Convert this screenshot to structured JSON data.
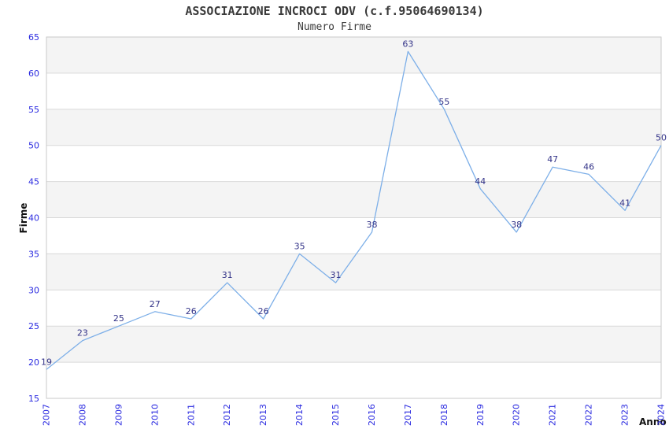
{
  "page": {
    "background": "#ffffff"
  },
  "chart_data": {
    "type": "line",
    "title": "ASSOCIAZIONE INCROCI ODV (c.f.95064690134)",
    "subtitle": "Numero Firme",
    "xlabel": "Anno",
    "ylabel": "Firme",
    "categories": [
      "2007",
      "2008",
      "2009",
      "2010",
      "2011",
      "2012",
      "2013",
      "2014",
      "2015",
      "2016",
      "2017",
      "2018",
      "2019",
      "2020",
      "2021",
      "2022",
      "2023",
      "2024"
    ],
    "values": [
      19,
      23,
      25,
      27,
      26,
      31,
      26,
      35,
      31,
      38,
      63,
      55,
      44,
      38,
      47,
      46,
      41,
      50
    ],
    "ylim": [
      15,
      65
    ],
    "yticks": [
      15,
      20,
      25,
      30,
      35,
      40,
      45,
      50,
      55,
      60,
      65
    ],
    "grid": true,
    "legend": "none",
    "point_labels_shown": true,
    "colors": {
      "line": "#7dafe8",
      "point_label": "#333388",
      "tick_label": "#2a2ae0",
      "band": "#f4f4f4",
      "gridline": "#d9d9d9",
      "plot_border": "#c9c9c9",
      "title_text": "#3a3a3a",
      "axis_title_text": "#111111"
    }
  }
}
